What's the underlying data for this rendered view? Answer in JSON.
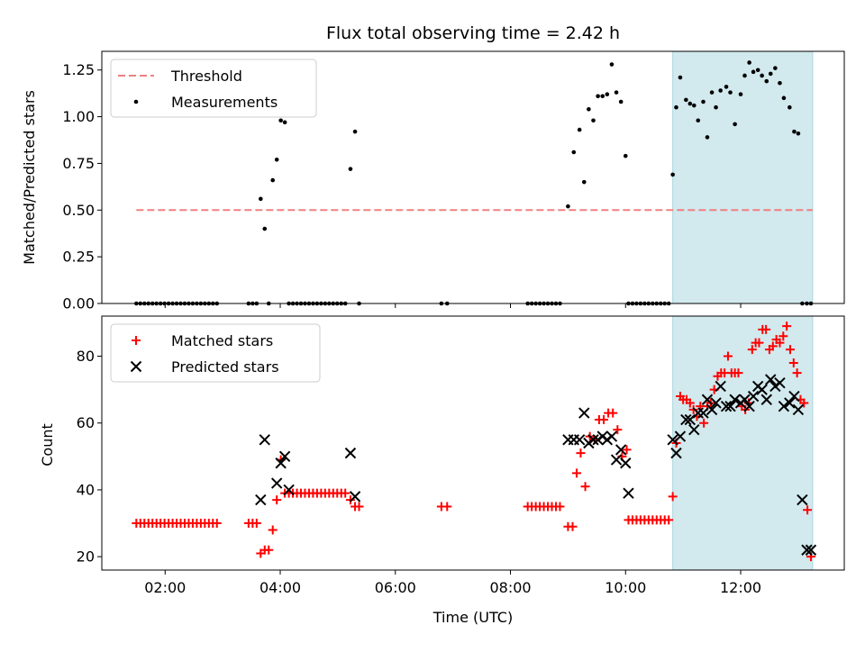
{
  "chart_data": [
    {
      "type": "scatter",
      "title": "Flux total observing time = 2.42 h",
      "xlabel": "",
      "ylabel": "Matched/Predicted stars",
      "xlim": [
        0.9,
        13.8
      ],
      "ylim": [
        0,
        1.35
      ],
      "yticks": [
        "0.00",
        "0.25",
        "0.50",
        "0.75",
        "1.00",
        "1.25"
      ],
      "ytick_values": [
        0,
        0.25,
        0.5,
        0.75,
        1.0,
        1.25
      ],
      "highlight_span": [
        10.82,
        13.25
      ],
      "highlight_color": "#d2e9ee",
      "threshold": {
        "name": "Threshold",
        "value": 0.5,
        "x_range": [
          1.5,
          13.25
        ],
        "color": "#f08080"
      },
      "series": [
        {
          "name": "Measurements",
          "color": "#000000",
          "x": [
            1.5,
            1.57,
            1.64,
            1.71,
            1.78,
            1.85,
            1.92,
            1.99,
            2.06,
            2.13,
            2.2,
            2.27,
            2.34,
            2.41,
            2.48,
            2.55,
            2.62,
            2.69,
            2.76,
            2.83,
            2.9,
            3.45,
            3.52,
            3.59,
            3.66,
            3.73,
            3.8,
            3.87,
            3.94,
            4.01,
            4.08,
            4.15,
            4.22,
            4.29,
            4.36,
            4.43,
            4.5,
            4.57,
            4.64,
            4.71,
            4.78,
            4.85,
            4.92,
            4.99,
            5.06,
            5.13,
            5.22,
            5.3,
            5.37,
            6.8,
            6.9,
            8.3,
            8.37,
            8.44,
            8.51,
            8.58,
            8.65,
            8.72,
            8.79,
            8.86,
            9.0,
            9.1,
            9.2,
            9.28,
            9.36,
            9.44,
            9.52,
            9.6,
            9.68,
            9.76,
            9.84,
            9.92,
            10.0,
            10.05,
            10.12,
            10.19,
            10.26,
            10.33,
            10.4,
            10.47,
            10.54,
            10.61,
            10.68,
            10.75,
            10.82,
            10.88,
            10.95,
            11.05,
            11.12,
            11.19,
            11.26,
            11.35,
            11.42,
            11.5,
            11.57,
            11.65,
            11.75,
            11.82,
            11.9,
            12.0,
            12.07,
            12.15,
            12.22,
            12.3,
            12.37,
            12.45,
            12.52,
            12.6,
            12.68,
            12.75,
            12.85,
            12.93,
            13.0,
            13.07,
            13.15,
            13.22
          ],
          "y": [
            0,
            0,
            0,
            0,
            0,
            0,
            0,
            0,
            0,
            0,
            0,
            0,
            0,
            0,
            0,
            0,
            0,
            0,
            0,
            0,
            0,
            0,
            0,
            0,
            0.56,
            0.4,
            0,
            0.66,
            0.77,
            0.98,
            0.97,
            0,
            0,
            0,
            0,
            0,
            0,
            0,
            0,
            0,
            0,
            0,
            0,
            0,
            0,
            0,
            0.72,
            0.92,
            0,
            0,
            0,
            0,
            0,
            0,
            0,
            0,
            0,
            0,
            0,
            0,
            0.52,
            0.81,
            0.93,
            0.65,
            1.04,
            0.98,
            1.11,
            1.11,
            1.12,
            1.28,
            1.13,
            1.08,
            0.79,
            0,
            0,
            0,
            0,
            0,
            0,
            0,
            0,
            0,
            0,
            0,
            0.69,
            1.05,
            1.21,
            1.09,
            1.07,
            1.06,
            0.98,
            1.08,
            0.89,
            1.13,
            1.05,
            1.14,
            1.16,
            1.13,
            0.96,
            1.12,
            1.22,
            1.29,
            1.24,
            1.25,
            1.22,
            1.19,
            1.23,
            1.26,
            1.18,
            1.1,
            1.05,
            0.92,
            0.91,
            0,
            0,
            0
          ]
        }
      ]
    },
    {
      "type": "scatter",
      "title": "",
      "xlabel": "Time (UTC)",
      "ylabel": "Count",
      "xlim": [
        0.9,
        13.8
      ],
      "ylim": [
        16,
        92
      ],
      "yticks": [
        "20",
        "40",
        "60",
        "80"
      ],
      "ytick_values": [
        20,
        40,
        60,
        80
      ],
      "xticks": [
        "02:00",
        "04:00",
        "06:00",
        "08:00",
        "10:00",
        "12:00"
      ],
      "xtick_values": [
        2,
        4,
        6,
        8,
        10,
        12
      ],
      "highlight_span": [
        10.82,
        13.25
      ],
      "highlight_color": "#d2e9ee",
      "series": [
        {
          "name": "Matched stars",
          "marker": "plus",
          "color": "#ff0000",
          "x": [
            1.5,
            1.57,
            1.64,
            1.71,
            1.78,
            1.85,
            1.92,
            1.99,
            2.06,
            2.13,
            2.2,
            2.27,
            2.34,
            2.41,
            2.48,
            2.55,
            2.62,
            2.69,
            2.76,
            2.83,
            2.9,
            3.45,
            3.52,
            3.59,
            3.66,
            3.73,
            3.8,
            3.87,
            3.94,
            4.01,
            4.08,
            4.15,
            4.22,
            4.29,
            4.36,
            4.43,
            4.5,
            4.57,
            4.64,
            4.71,
            4.78,
            4.85,
            4.92,
            4.99,
            5.06,
            5.13,
            5.22,
            5.3,
            5.37,
            6.8,
            6.9,
            8.3,
            8.37,
            8.44,
            8.51,
            8.58,
            8.65,
            8.72,
            8.79,
            8.86,
            9.0,
            9.08,
            9.15,
            9.22,
            9.3,
            9.38,
            9.46,
            9.54,
            9.62,
            9.7,
            9.78,
            9.86,
            9.94,
            10.02,
            10.05,
            10.12,
            10.19,
            10.26,
            10.33,
            10.4,
            10.47,
            10.54,
            10.61,
            10.68,
            10.75,
            10.82,
            10.88,
            10.95,
            11.0,
            11.06,
            11.12,
            11.18,
            11.24,
            11.3,
            11.36,
            11.42,
            11.48,
            11.54,
            11.6,
            11.66,
            11.72,
            11.78,
            11.84,
            11.9,
            11.96,
            12.02,
            12.08,
            12.14,
            12.2,
            12.26,
            12.32,
            12.38,
            12.44,
            12.5,
            12.56,
            12.62,
            12.68,
            12.74,
            12.8,
            12.86,
            12.92,
            12.98,
            13.04,
            13.1,
            13.16,
            13.22
          ],
          "y": [
            30,
            30,
            30,
            30,
            30,
            30,
            30,
            30,
            30,
            30,
            30,
            30,
            30,
            30,
            30,
            30,
            30,
            30,
            30,
            30,
            30,
            30,
            30,
            30,
            21,
            22,
            22,
            28,
            37,
            49,
            39,
            39,
            39,
            39,
            39,
            39,
            39,
            39,
            39,
            39,
            39,
            39,
            39,
            39,
            39,
            39,
            37,
            35,
            35,
            35,
            35,
            35,
            35,
            35,
            35,
            35,
            35,
            35,
            35,
            35,
            29,
            29,
            45,
            51,
            41,
            56,
            55,
            61,
            61,
            63,
            63,
            58,
            50,
            52,
            31,
            31,
            31,
            31,
            31,
            31,
            31,
            31,
            31,
            31,
            31,
            38,
            54,
            68,
            67,
            67,
            66,
            64,
            62,
            65,
            60,
            65,
            66,
            70,
            74,
            75,
            75,
            80,
            75,
            75,
            75,
            65,
            64,
            66,
            82,
            84,
            84,
            88,
            88,
            82,
            83,
            85,
            84,
            86,
            89,
            82,
            78,
            75,
            67,
            66,
            34,
            20
          ]
        },
        {
          "name": "Predicted stars",
          "marker": "x",
          "color": "#000000",
          "x": [
            3.66,
            3.73,
            3.94,
            4.01,
            4.08,
            4.15,
            5.22,
            5.3,
            9.0,
            9.1,
            9.2,
            9.28,
            9.36,
            9.44,
            9.52,
            9.6,
            9.68,
            9.76,
            9.84,
            9.92,
            10.0,
            10.05,
            10.82,
            10.88,
            10.95,
            11.05,
            11.12,
            11.19,
            11.26,
            11.35,
            11.42,
            11.5,
            11.57,
            11.65,
            11.75,
            11.82,
            11.9,
            12.0,
            12.07,
            12.15,
            12.22,
            12.3,
            12.37,
            12.45,
            12.52,
            12.6,
            12.68,
            12.75,
            12.85,
            12.93,
            13.0,
            13.07,
            13.15,
            13.22
          ],
          "y": [
            37,
            55,
            42,
            48,
            50,
            40,
            51,
            38,
            55,
            55,
            55,
            63,
            54,
            55,
            55,
            56,
            55,
            56,
            49,
            52,
            48,
            39,
            55,
            51,
            56,
            61,
            61,
            58,
            63,
            63,
            67,
            64,
            66,
            71,
            65,
            65,
            67,
            66,
            67,
            65,
            68,
            71,
            70,
            67,
            73,
            71,
            72,
            65,
            66,
            68,
            64,
            37,
            22,
            22
          ]
        }
      ]
    }
  ]
}
